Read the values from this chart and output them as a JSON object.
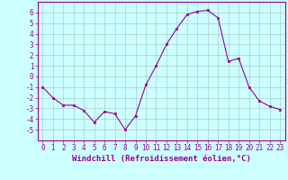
{
  "x": [
    0,
    1,
    2,
    3,
    4,
    5,
    6,
    7,
    8,
    9,
    10,
    11,
    12,
    13,
    14,
    15,
    16,
    17,
    18,
    19,
    20,
    21,
    22,
    23
  ],
  "y": [
    -1,
    -2,
    -2.7,
    -2.7,
    -3.2,
    -4.3,
    -3.3,
    -3.5,
    -5,
    -3.7,
    -0.8,
    1,
    3,
    4.5,
    5.8,
    6.1,
    6.2,
    5.5,
    1.4,
    1.7,
    -1,
    -2.3,
    -2.8,
    -3.1
  ],
  "line_color": "#990099",
  "marker_color": "#990099",
  "bg_color": "#ccffff",
  "grid_color": "#aacccc",
  "xlabel": "Windchill (Refroidissement éolien,°C)",
  "xlim": [
    -0.5,
    23.5
  ],
  "ylim": [
    -6,
    7
  ],
  "yticks": [
    -5,
    -4,
    -3,
    -2,
    -1,
    0,
    1,
    2,
    3,
    4,
    5,
    6
  ],
  "xticks": [
    0,
    1,
    2,
    3,
    4,
    5,
    6,
    7,
    8,
    9,
    10,
    11,
    12,
    13,
    14,
    15,
    16,
    17,
    18,
    19,
    20,
    21,
    22,
    23
  ],
  "tick_label_color": "#990099",
  "axis_label_color": "#990099",
  "tick_fontsize": 5.5,
  "label_fontsize": 6.5
}
